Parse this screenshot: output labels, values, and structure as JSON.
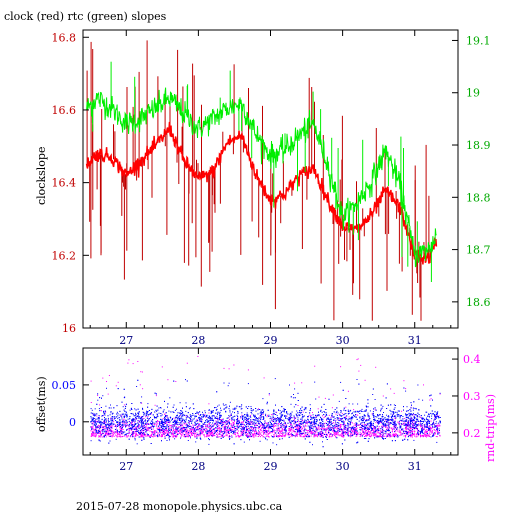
{
  "title": "clock (red) rtc (green) slopes",
  "footer": "2015-07-28  monopole.physics.ubc.ca",
  "colors": {
    "red": "#ff0000",
    "darkred": "#c00000",
    "green": "#00ee00",
    "blue": "#0000ff",
    "magenta": "#ff00ff",
    "axis": "#000000",
    "xtick_text": "#000080"
  },
  "chart_data": [
    {
      "type": "line",
      "title": "clock (red) rtc (green) slopes",
      "ylabel": "clockslope",
      "ylim": [
        16.0,
        16.82
      ],
      "y2lim": [
        18.55,
        19.12
      ],
      "xlim": [
        26.4,
        31.6
      ],
      "grid": false,
      "x_ticks": [
        27,
        28,
        29,
        30,
        31
      ],
      "x_tick_labels": [
        "27",
        "28",
        "29",
        "30",
        "31"
      ],
      "y_ticks": [
        16.0,
        16.2,
        16.4,
        16.6,
        16.8
      ],
      "y_tick_labels": [
        "16",
        "16.2",
        "16.4",
        "16.6",
        "16.8"
      ],
      "y2_ticks": [
        18.6,
        18.7,
        18.8,
        18.9,
        19.0,
        19.1
      ],
      "y2_tick_labels": [
        "18.6",
        "18.7",
        "18.8",
        "18.9",
        "19",
        "19.1"
      ],
      "series": [
        {
          "color": "red",
          "axis": "left",
          "x": [
            26.45,
            26.6,
            26.8,
            27.0,
            27.2,
            27.4,
            27.6,
            27.8,
            28.0,
            28.2,
            28.4,
            28.6,
            28.8,
            29.0,
            29.2,
            29.4,
            29.6,
            29.8,
            30.0,
            30.2,
            30.4,
            30.6,
            30.8,
            31.0,
            31.2,
            31.3
          ],
          "y": [
            16.45,
            16.48,
            16.47,
            16.42,
            16.46,
            16.5,
            16.55,
            16.46,
            16.41,
            16.43,
            16.51,
            16.53,
            16.42,
            16.35,
            16.37,
            16.42,
            16.44,
            16.35,
            16.28,
            16.27,
            16.31,
            16.38,
            16.33,
            16.2,
            16.19,
            16.24
          ]
        },
        {
          "color": "green",
          "axis": "right",
          "x": [
            26.45,
            26.6,
            26.8,
            27.0,
            27.2,
            27.4,
            27.6,
            27.8,
            28.0,
            28.2,
            28.4,
            28.6,
            28.8,
            29.0,
            29.2,
            29.4,
            29.6,
            29.8,
            30.0,
            30.2,
            30.4,
            30.6,
            30.8,
            31.0,
            31.2,
            31.3
          ],
          "y": [
            18.97,
            18.99,
            18.97,
            18.94,
            18.95,
            18.97,
            18.99,
            18.96,
            18.93,
            18.95,
            18.97,
            18.98,
            18.92,
            18.88,
            18.89,
            18.92,
            18.94,
            18.86,
            18.76,
            18.79,
            18.83,
            18.89,
            18.82,
            18.69,
            18.7,
            18.73
          ]
        }
      ]
    },
    {
      "type": "scatter",
      "ylabel": "offset(ms)",
      "y2label": "rnd-trip(ms)",
      "xlim": [
        26.4,
        31.6
      ],
      "ylim": [
        -0.045,
        0.1
      ],
      "y2lim": [
        0.14,
        0.43
      ],
      "grid": false,
      "x_ticks": [
        27,
        28,
        29,
        30,
        31
      ],
      "x_tick_labels": [
        "27",
        "28",
        "29",
        "30",
        "31"
      ],
      "y_ticks": [
        0.0,
        0.05
      ],
      "y_tick_labels": [
        "0",
        "0.05"
      ],
      "y2_ticks": [
        0.2,
        0.3,
        0.4
      ],
      "y2_tick_labels": [
        "0.2",
        "0.3",
        "0.4"
      ],
      "series": [
        {
          "color": "blue",
          "axis": "left",
          "x_range": [
            26.5,
            31.35
          ],
          "y_center": 0.0,
          "y_spread": 0.02
        },
        {
          "color": "magenta",
          "axis": "right",
          "x_range": [
            26.5,
            31.35
          ],
          "y_center": 0.2,
          "y_spread": 0.03
        }
      ]
    }
  ]
}
